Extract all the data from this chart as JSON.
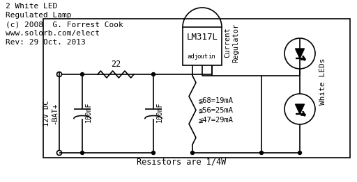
{
  "title_lines": [
    "2 White LED",
    "Regulated Lamp",
    "(c) 2008  G. Forrest Cook",
    "www.solorb.com/elect",
    "Rev: 29 Oct. 2013"
  ],
  "ic_label": "LM317L",
  "ic_pins": [
    "adj",
    "out",
    "in"
  ],
  "resistor_label": "22",
  "cap_labels": [
    "100nF",
    "100nF"
  ],
  "resistor_values": [
    "≨68=19mA",
    "≨56=25mA",
    "≨47=29mA"
  ],
  "led_label": "White LEDs",
  "power_label": "12V DC",
  "bat_label": "-BAT+",
  "bottom_label": "Resistors are 1/4W",
  "bg_color": "#ffffff",
  "line_color": "#000000",
  "text_color": "#000000",
  "figsize": [
    5.12,
    2.62
  ],
  "dpi": 100
}
